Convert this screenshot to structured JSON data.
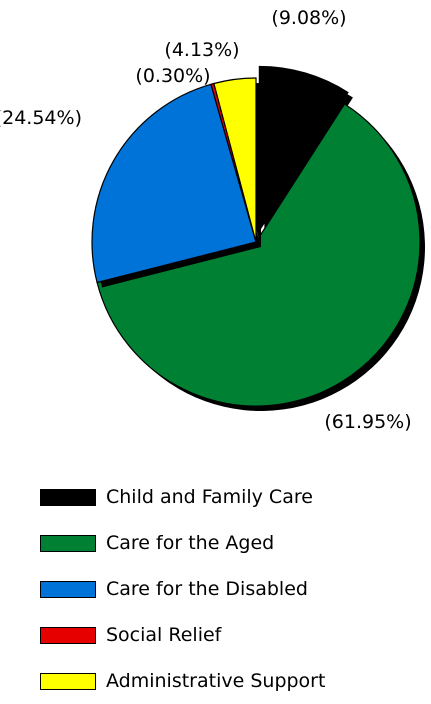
{
  "chart_data": {
    "type": "pie",
    "title": "",
    "exploded_slice": "Child and Family Care",
    "series": [
      {
        "name": "Child and Family Care",
        "value": 9.08,
        "label": "(9.08%)",
        "color": "#000000"
      },
      {
        "name": "Care for the Aged",
        "value": 61.95,
        "label": "(61.95%)",
        "color": "#008033"
      },
      {
        "name": "Care for the Disabled",
        "value": 24.54,
        "label": "(24.54%)",
        "color": "#0073d9"
      },
      {
        "name": "Social Relief",
        "value": 0.3,
        "label": "(0.30%)",
        "color": "#e60000"
      },
      {
        "name": "Administrative Support",
        "value": 4.13,
        "label": "(4.13%)",
        "color": "#ffff00"
      }
    ],
    "legend_position": "bottom"
  }
}
